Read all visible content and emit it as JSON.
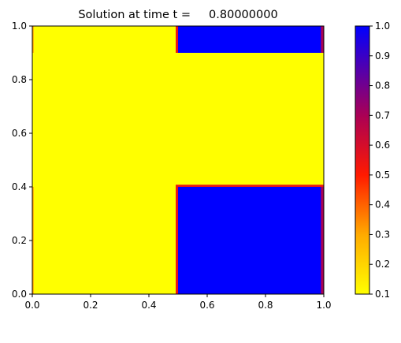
{
  "chart_data": {
    "type": "heatmap",
    "title": "Solution at time t =     0.80000000",
    "xlabel": "",
    "ylabel": "",
    "xlim": [
      0.0,
      1.0
    ],
    "ylim": [
      0.0,
      1.0
    ],
    "xticks": [
      "0.0",
      "0.2",
      "0.4",
      "0.6",
      "0.8",
      "1.0"
    ],
    "yticks": [
      "0.0",
      "0.2",
      "0.4",
      "0.6",
      "0.8",
      "1.0"
    ],
    "grid": false,
    "background_value": 0.1,
    "regions": [
      {
        "x": [
          0.5,
          1.0
        ],
        "y": [
          0.0,
          0.4
        ],
        "value": 1.0
      },
      {
        "x": [
          0.5,
          1.0
        ],
        "y": [
          0.9,
          1.0
        ],
        "value": 1.0
      }
    ],
    "colorbar": {
      "range": [
        0.1,
        1.0
      ],
      "ticks": [
        "0.1",
        "0.2",
        "0.3",
        "0.4",
        "0.5",
        "0.6",
        "0.7",
        "0.8",
        "0.9",
        "1.0"
      ],
      "colors": [
        {
          "value": 0.1,
          "color": "#ffff00"
        },
        {
          "value": 0.3,
          "color": "#ffaa00"
        },
        {
          "value": 0.5,
          "color": "#ff1a00"
        },
        {
          "value": 0.7,
          "color": "#aa0055"
        },
        {
          "value": 1.0,
          "color": "#0000ff"
        }
      ]
    }
  }
}
